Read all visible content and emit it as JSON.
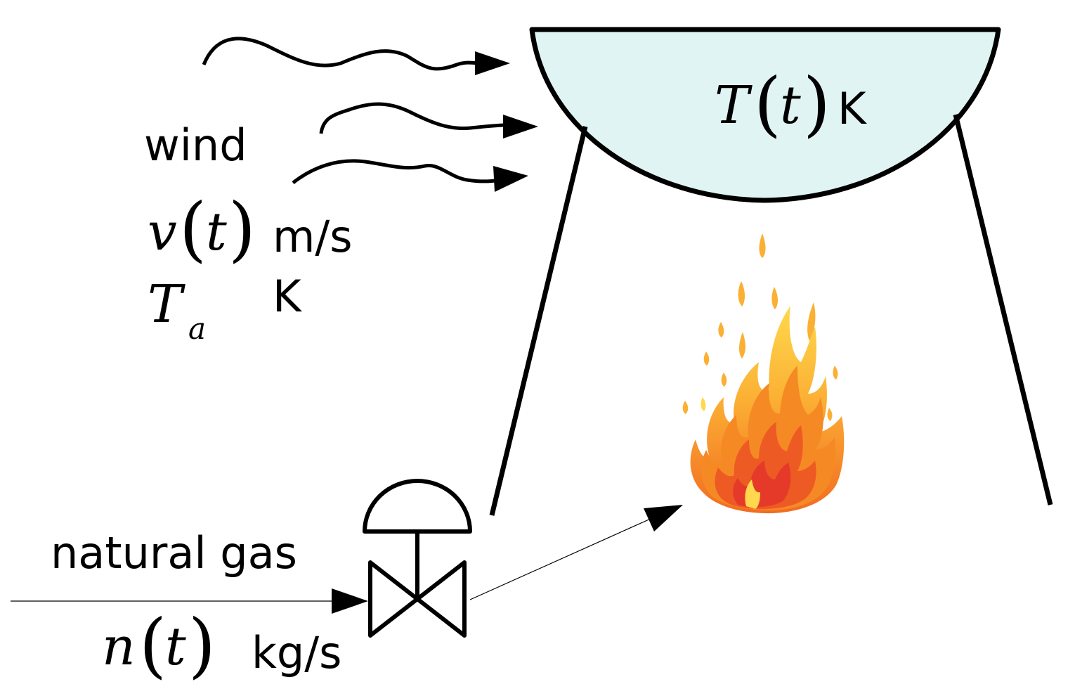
{
  "wind": {
    "label": "wind",
    "speed_symbol": "v",
    "speed_arg": "t",
    "speed_unit": "m/s",
    "ambient_temp_symbol": "T",
    "ambient_temp_subscript": "a",
    "ambient_temp_unit": "K"
  },
  "pot": {
    "temp_symbol": "T",
    "temp_arg": "t",
    "temp_unit": "K"
  },
  "gas": {
    "label": "natural gas",
    "flow_symbol": "n",
    "flow_arg": "t",
    "flow_unit": "kg/s"
  },
  "paren_open": "(",
  "paren_close": ")",
  "colors": {
    "stroke": "#000000",
    "pot_fill": "#e0f4f4",
    "flame_outer": "#ffe27a",
    "flame_mid": "#fbb034",
    "flame_inner": "#f26b21",
    "flame_core": "#e53a2a"
  },
  "icons": {
    "pot": "cauldron-icon",
    "flame": "flame-icon",
    "valve": "control-valve-icon",
    "wind": "wind-arrows-icon"
  }
}
